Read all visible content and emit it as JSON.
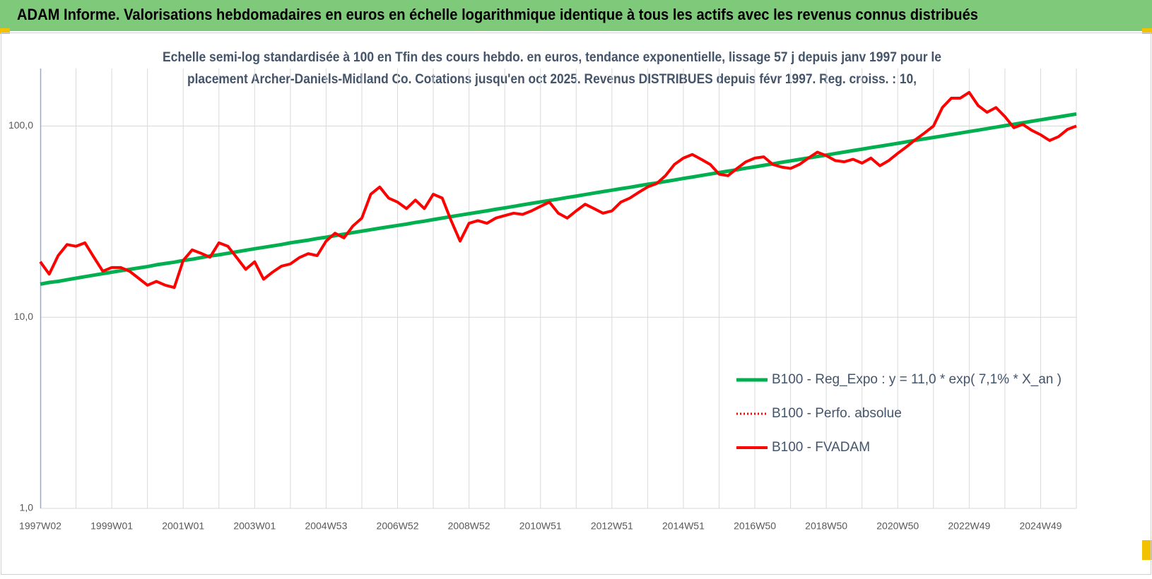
{
  "header": {
    "title": "ADAM Informe. Valorisations hebdomadaires en euros en échelle logarithmique identique à tous les actifs avec les revenus connus distribués"
  },
  "chart_data": {
    "type": "line",
    "title": [
      "Echelle semi-log standardisée à 100 en Tfin des cours hebdo. en euros, tendance exponentielle, lissage 57 j depuis janv 1997 pour le",
      "placement Archer-Daniels-Midland Co. Cotations jusqu'en oct 2025. Revenus DISTRIBUES depuis févr 1997.  Reg. croiss. : 10,"
    ],
    "log_scale": true,
    "grid": true,
    "legend": "lower right",
    "ylim": [
      1,
      200
    ],
    "yticks": [
      {
        "value": 1,
        "label": "1,0"
      },
      {
        "value": 10,
        "label": "10,0"
      },
      {
        "value": 100,
        "label": "100,0"
      }
    ],
    "categories": [
      "1997W02",
      null,
      null,
      null,
      null,
      null,
      null,
      null,
      "1999W01",
      null,
      null,
      null,
      null,
      null,
      null,
      null,
      "2001W01",
      null,
      null,
      null,
      null,
      null,
      null,
      null,
      "2003W01",
      null,
      null,
      null,
      null,
      null,
      null,
      null,
      "2004W53",
      null,
      null,
      null,
      null,
      null,
      null,
      null,
      "2006W52",
      null,
      null,
      null,
      null,
      null,
      null,
      null,
      "2008W52",
      null,
      null,
      null,
      null,
      null,
      null,
      null,
      "2010W51",
      null,
      null,
      null,
      null,
      null,
      null,
      null,
      "2012W51",
      null,
      null,
      null,
      null,
      null,
      null,
      null,
      "2014W51",
      null,
      null,
      null,
      null,
      null,
      null,
      null,
      "2016W50",
      null,
      null,
      null,
      null,
      null,
      null,
      null,
      "2018W50",
      null,
      null,
      null,
      null,
      null,
      null,
      null,
      "2020W50",
      null,
      null,
      null,
      null,
      null,
      null,
      null,
      "2022W49",
      null,
      null,
      null,
      null,
      null,
      null,
      null,
      "2024W49",
      null,
      null,
      null,
      null
    ],
    "series": [
      {
        "name": "B100 - Reg_Expo : y = 11,0 * exp( 7,1% *  X_an )",
        "color": "#00b050",
        "line_style": "solid",
        "values": [
          14.9,
          15.2,
          15.4,
          15.7,
          16.0,
          16.3,
          16.6,
          16.9,
          17.2,
          17.5,
          17.8,
          18.1,
          18.4,
          18.8,
          19.1,
          19.4,
          19.8,
          20.1,
          20.5,
          20.9,
          21.2,
          21.6,
          22.0,
          22.4,
          22.8,
          23.2,
          23.6,
          24.0,
          24.5,
          24.9,
          25.3,
          25.8,
          26.2,
          26.7,
          27.2,
          27.7,
          28.2,
          28.7,
          29.2,
          29.7,
          30.2,
          30.7,
          31.3,
          31.8,
          32.4,
          33.0,
          33.6,
          34.2,
          34.8,
          35.4,
          36.0,
          36.7,
          37.3,
          38.0,
          38.7,
          39.4,
          40.1,
          40.8,
          41.5,
          42.3,
          43.0,
          43.8,
          44.6,
          45.4,
          46.2,
          47.0,
          47.8,
          48.7,
          49.6,
          50.4,
          51.3,
          52.2,
          53.2,
          54.1,
          55.1,
          56.1,
          57.1,
          58.1,
          59.1,
          60.2,
          61.2,
          62.3,
          63.4,
          64.6,
          65.7,
          66.9,
          68.1,
          69.3,
          70.5,
          71.8,
          73.1,
          74.4,
          75.7,
          77.1,
          78.4,
          79.8,
          81.2,
          82.7,
          84.2,
          85.7,
          87.2,
          88.7,
          90.3,
          91.9,
          93.6,
          95.2,
          96.9,
          98.7,
          100.4,
          102.2,
          104.0,
          105.9,
          107.8,
          109.7,
          111.6,
          113.6,
          115.6
        ]
      },
      {
        "name": "B100 - Perfo. absolue",
        "color": "#ff0000",
        "line_style": "dotted",
        "values": [
          19.5,
          16.8,
          21,
          24,
          23.5,
          24.5,
          20.6,
          17.4,
          18.2,
          18.2,
          17.4,
          16,
          14.7,
          15.4,
          14.7,
          14.3,
          19.8,
          22.5,
          21.6,
          20.6,
          24.5,
          23.5,
          20.5,
          17.8,
          19.5,
          15.8,
          17.2,
          18.5,
          19,
          20.5,
          21.5,
          21,
          25,
          27.5,
          26,
          30,
          33,
          44,
          48,
          42,
          40,
          37,
          41,
          37,
          44,
          42,
          32,
          25,
          31,
          32,
          31,
          33,
          34,
          35,
          34.5,
          36,
          38,
          40,
          35,
          33,
          36,
          39,
          37,
          35,
          36,
          40,
          42,
          45,
          48,
          50,
          55,
          63,
          68,
          71,
          67,
          63,
          56,
          55,
          60,
          65,
          68,
          69,
          63,
          61,
          60,
          63,
          68,
          73,
          70,
          66,
          65,
          67,
          64,
          68,
          62,
          66,
          72,
          78,
          85,
          92,
          100,
          125,
          140,
          140,
          150,
          128,
          118,
          125,
          112,
          98,
          102,
          95,
          90,
          84,
          88,
          96,
          100
        ]
      },
      {
        "name": "B100 - FVADAM",
        "color": "#ff0000",
        "line_style": "solid",
        "values": [
          19.5,
          16.8,
          21,
          24,
          23.5,
          24.5,
          20.6,
          17.4,
          18.2,
          18.2,
          17.4,
          16,
          14.7,
          15.4,
          14.7,
          14.3,
          19.8,
          22.5,
          21.6,
          20.6,
          24.5,
          23.5,
          20.5,
          17.8,
          19.5,
          15.8,
          17.2,
          18.5,
          19,
          20.5,
          21.5,
          21,
          25,
          27.5,
          26,
          30,
          33,
          44,
          48,
          42,
          40,
          37,
          41,
          37,
          44,
          42,
          32,
          25,
          31,
          32,
          31,
          33,
          34,
          35,
          34.5,
          36,
          38,
          40,
          35,
          33,
          36,
          39,
          37,
          35,
          36,
          40,
          42,
          45,
          48,
          50,
          55,
          63,
          68,
          71,
          67,
          63,
          56,
          55,
          60,
          65,
          68,
          69,
          63,
          61,
          60,
          63,
          68,
          73,
          70,
          66,
          65,
          67,
          64,
          68,
          62,
          66,
          72,
          78,
          85,
          92,
          100,
          125,
          140,
          140,
          150,
          128,
          118,
          125,
          112,
          98,
          102,
          95,
          90,
          84,
          88,
          96,
          100
        ]
      }
    ]
  }
}
